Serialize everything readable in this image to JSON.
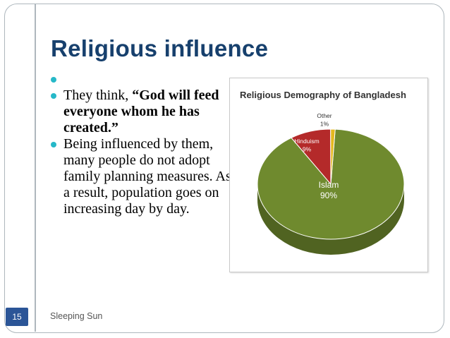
{
  "slide": {
    "title": "Religious influence",
    "bullets": [
      {
        "parts": []
      },
      {
        "parts": [
          {
            "text": "They think, ",
            "bold": false
          },
          {
            "text": "“God will feed everyone whom he has created.”",
            "bold": true
          }
        ]
      },
      {
        "parts": [
          {
            "text": "Being influenced by them, many people do not adopt family planning measures. As a result, population goes on increasing day by day.",
            "bold": false
          }
        ]
      }
    ],
    "page_number": "15",
    "footer_text": "Sleeping Sun",
    "colors": {
      "title": "#17406d",
      "bullet": "#26b8c8",
      "page_badge": "#2b5597"
    }
  },
  "chart_data": {
    "type": "pie",
    "title": "Religious Demography of Bangladesh",
    "slices": [
      {
        "label": "Islam",
        "value_label": "90%",
        "value": 90,
        "color": "#6f8a2e"
      },
      {
        "label": "Hinduism",
        "value_label": "9%",
        "value": 9,
        "color": "#b42a2a"
      },
      {
        "label": "Other",
        "value_label": "1%",
        "value": 1,
        "color": "#e4b81e"
      }
    ]
  }
}
